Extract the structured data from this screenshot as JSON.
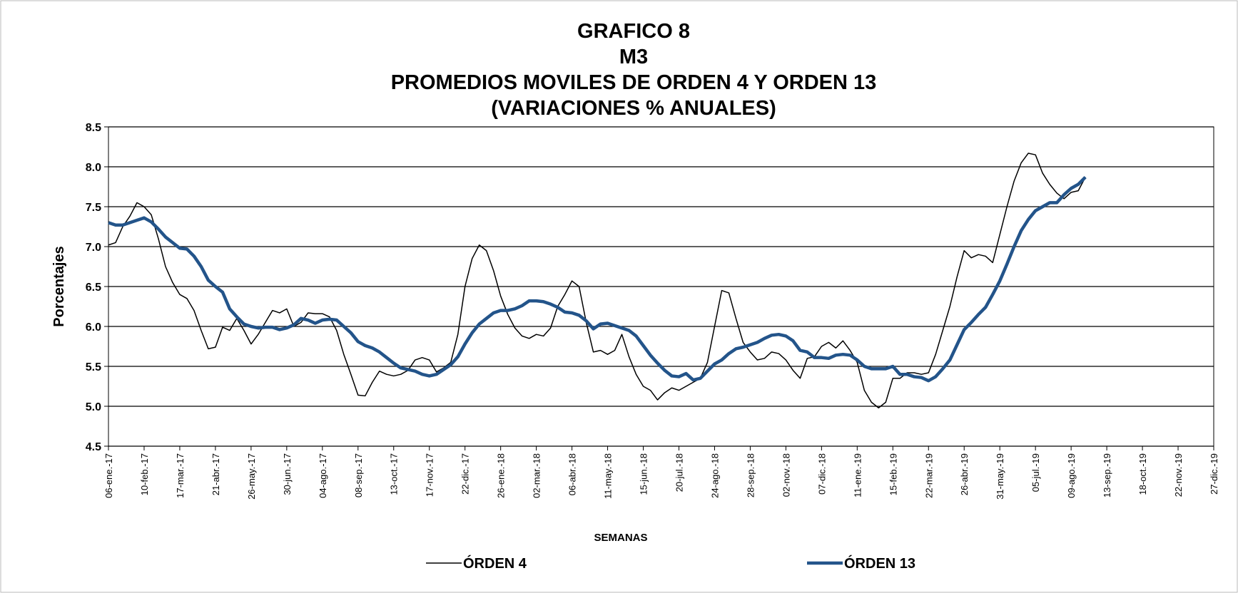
{
  "chart_data": {
    "type": "line",
    "title": [
      "GRAFICO  8",
      "M3",
      "PROMEDIOS MOVILES DE ORDEN 4 Y ORDEN 13",
      "(VARIACIONES % ANUALES)"
    ],
    "y_label": "Porcentajes",
    "x_label": "SEMANAS",
    "categories": [
      "06-ene.-17",
      null,
      null,
      null,
      null,
      "10-feb.-17",
      null,
      null,
      null,
      null,
      "17-mar.-17",
      null,
      null,
      null,
      null,
      "21-abr.-17",
      null,
      null,
      null,
      null,
      "26-may.-17",
      null,
      null,
      null,
      null,
      "30-jun.-17",
      null,
      null,
      null,
      null,
      "04-ago.-17",
      null,
      null,
      null,
      null,
      "08-sep.-17",
      null,
      null,
      null,
      null,
      "13-oct.-17",
      null,
      null,
      null,
      null,
      "17-nov.-17",
      null,
      null,
      null,
      null,
      "22-dic.-17",
      null,
      null,
      null,
      null,
      "26-ene.-18",
      null,
      null,
      null,
      null,
      "02-mar.-18",
      null,
      null,
      null,
      null,
      "06-abr.-18",
      null,
      null,
      null,
      null,
      "11-may.-18",
      null,
      null,
      null,
      null,
      "15-jun.-18",
      null,
      null,
      null,
      null,
      "20-jul.-18",
      null,
      null,
      null,
      null,
      "24-ago.-18",
      null,
      null,
      null,
      null,
      "28-sep.-18",
      null,
      null,
      null,
      null,
      "02-nov.-18",
      null,
      null,
      null,
      null,
      "07-dic.-18",
      null,
      null,
      null,
      null,
      "11-ene.-19",
      null,
      null,
      null,
      null,
      "15-feb.-19",
      null,
      null,
      null,
      null,
      "22-mar.-19",
      null,
      null,
      null,
      null,
      "26-abr.-19",
      null,
      null,
      null,
      null,
      "31-may.-19",
      null,
      null,
      null,
      null,
      "05-jul.-19",
      null,
      null,
      null,
      null,
      "09-ago.-19",
      null,
      null,
      null,
      null,
      "13-sep.-19",
      null,
      null,
      null,
      null,
      "18-oct.-19",
      null,
      null,
      null,
      null,
      "22-nov.-19",
      null,
      null,
      null,
      null,
      "27-dic.-19"
    ],
    "series": [
      {
        "name": "ÓRDEN 4",
        "color": "#000000",
        "width": 1.5,
        "values": [
          7.02,
          7.05,
          7.25,
          7.38,
          7.55,
          7.5,
          7.4,
          7.1,
          6.75,
          6.55,
          6.4,
          6.35,
          6.2,
          5.95,
          5.72,
          5.74,
          5.99,
          5.95,
          6.1,
          5.95,
          5.78,
          5.9,
          6.05,
          6.2,
          6.17,
          6.22,
          6.0,
          6.05,
          6.17,
          6.16,
          6.16,
          6.12,
          5.95,
          5.65,
          5.4,
          5.14,
          5.13,
          5.3,
          5.44,
          5.4,
          5.38,
          5.4,
          5.45,
          5.58,
          5.61,
          5.58,
          5.43,
          5.48,
          5.55,
          5.9,
          6.5,
          6.85,
          7.02,
          6.95,
          6.7,
          6.38,
          6.15,
          5.98,
          5.88,
          5.85,
          5.9,
          5.88,
          5.98,
          6.25,
          6.4,
          6.57,
          6.5,
          6.05,
          5.68,
          5.7,
          5.65,
          5.7,
          5.9,
          5.62,
          5.4,
          5.25,
          5.2,
          5.08,
          5.17,
          5.23,
          5.2,
          5.25,
          5.3,
          5.35,
          5.55,
          6.0,
          6.45,
          6.42,
          6.1,
          5.8,
          5.68,
          5.58,
          5.6,
          5.68,
          5.66,
          5.58,
          5.45,
          5.35,
          5.6,
          5.62,
          5.75,
          5.8,
          5.73,
          5.82,
          5.7,
          5.55,
          5.2,
          5.05,
          4.98,
          5.05,
          5.35,
          5.35,
          5.42,
          5.42,
          5.4,
          5.42,
          5.65,
          5.95,
          6.25,
          6.62,
          6.95,
          6.86,
          6.9,
          6.88,
          6.8,
          7.15,
          7.5,
          7.82,
          8.05,
          8.17,
          8.15,
          7.92,
          7.78,
          7.67,
          7.6,
          7.68,
          7.7,
          7.87,
          null,
          null,
          null,
          null,
          null,
          null,
          null,
          null,
          null,
          null,
          null,
          null,
          null,
          null,
          null,
          null,
          null,
          null
        ]
      },
      {
        "name": "ÓRDEN 13",
        "color": "#23548a",
        "width": 4.5,
        "values": [
          7.3,
          7.27,
          7.27,
          7.3,
          7.33,
          7.36,
          7.31,
          7.22,
          7.12,
          7.05,
          6.98,
          6.97,
          6.88,
          6.75,
          6.58,
          6.5,
          6.43,
          6.22,
          6.12,
          6.03,
          6.0,
          5.98,
          5.99,
          5.99,
          5.96,
          5.98,
          6.02,
          6.1,
          6.08,
          6.04,
          6.08,
          6.09,
          6.08,
          6.0,
          5.92,
          5.81,
          5.76,
          5.73,
          5.68,
          5.61,
          5.54,
          5.48,
          5.46,
          5.44,
          5.4,
          5.38,
          5.4,
          5.46,
          5.52,
          5.62,
          5.78,
          5.92,
          6.03,
          6.1,
          6.17,
          6.2,
          6.2,
          6.22,
          6.26,
          6.32,
          6.32,
          6.31,
          6.28,
          6.24,
          6.18,
          6.17,
          6.14,
          6.07,
          5.97,
          6.03,
          6.04,
          6.01,
          5.98,
          5.95,
          5.88,
          5.76,
          5.64,
          5.54,
          5.45,
          5.38,
          5.37,
          5.41,
          5.33,
          5.35,
          5.44,
          5.53,
          5.58,
          5.66,
          5.72,
          5.74,
          5.77,
          5.8,
          5.85,
          5.89,
          5.9,
          5.88,
          5.82,
          5.7,
          5.68,
          5.61,
          5.61,
          5.6,
          5.64,
          5.65,
          5.64,
          5.58,
          5.5,
          5.47,
          5.47,
          5.47,
          5.5,
          5.4,
          5.4,
          5.37,
          5.36,
          5.32,
          5.37,
          5.47,
          5.58,
          5.77,
          5.96,
          6.05,
          6.15,
          6.24,
          6.4,
          6.57,
          6.78,
          7.0,
          7.2,
          7.34,
          7.45,
          7.5,
          7.55,
          7.55,
          7.65,
          7.73,
          7.78,
          7.87,
          null,
          null,
          null,
          null,
          null,
          null,
          null,
          null,
          null,
          null,
          null,
          null,
          null,
          null,
          null,
          null,
          null,
          null
        ]
      }
    ],
    "ylim": [
      4.5,
      8.5
    ],
    "yticks": [
      {
        "value": 4.5,
        "label": "4.5"
      },
      {
        "value": 5,
        "label": "5.0"
      },
      5.5,
      {
        "value": 6,
        "label": "6.0"
      },
      6.5,
      {
        "value": 7,
        "label": "7.0"
      },
      7.5,
      {
        "value": 8,
        "label": "8.0"
      },
      8.5
    ],
    "grid": true,
    "legend": "bottom"
  }
}
